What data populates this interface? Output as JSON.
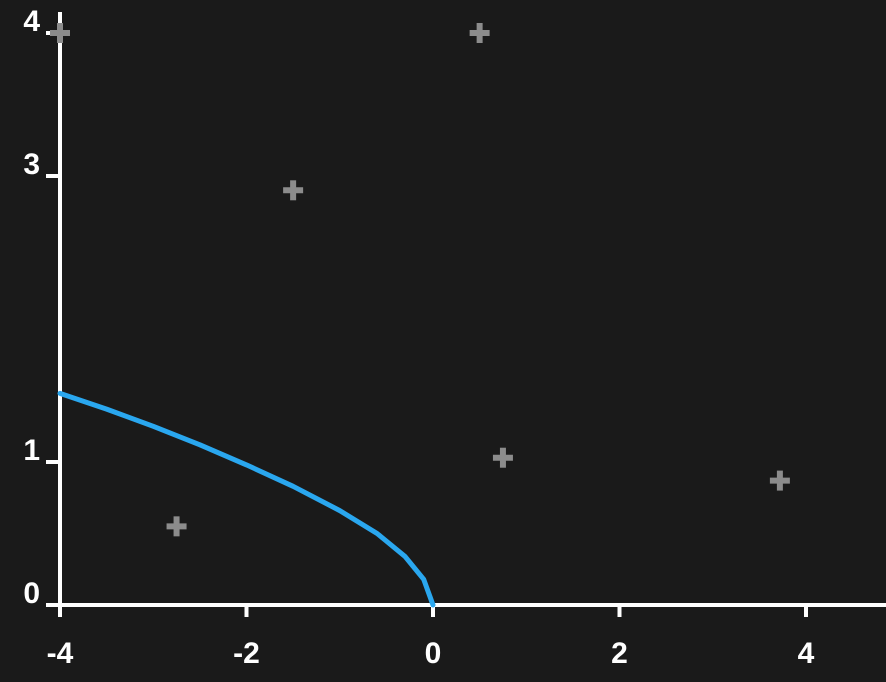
{
  "chart_data": {
    "type": "scatter",
    "title": "",
    "xlabel": "",
    "ylabel": "",
    "xlim": [
      -4,
      4.5
    ],
    "ylim": [
      0,
      4
    ],
    "x_ticks": [
      {
        "value": -4,
        "label": "-4"
      },
      {
        "value": -2,
        "label": "-2"
      },
      {
        "value": 0,
        "label": "0"
      },
      {
        "value": 2,
        "label": "2"
      },
      {
        "value": 4,
        "label": "4"
      }
    ],
    "y_ticks": [
      {
        "value": 0,
        "label": "0"
      },
      {
        "value": 1,
        "label": "1"
      },
      {
        "value": 3,
        "label": "3"
      },
      {
        "value": 4,
        "label": "4"
      }
    ],
    "grid": false,
    "series": [
      {
        "kind": "points",
        "marker": "plus",
        "color": "#8c8c8c",
        "points": [
          {
            "x": -4.0,
            "y": 4.0
          },
          {
            "x": 0.5,
            "y": 4.0
          },
          {
            "x": -1.5,
            "y": 2.9
          },
          {
            "x": 0.75,
            "y": 1.03
          },
          {
            "x": 3.72,
            "y": 0.87
          },
          {
            "x": -2.75,
            "y": 0.55
          }
        ]
      },
      {
        "kind": "line",
        "color": "#2aa7ef",
        "points": [
          {
            "x": -4.0,
            "y": 1.48
          },
          {
            "x": -3.5,
            "y": 1.37
          },
          {
            "x": -3.0,
            "y": 1.25
          },
          {
            "x": -2.5,
            "y": 1.12
          },
          {
            "x": -2.0,
            "y": 0.98
          },
          {
            "x": -1.5,
            "y": 0.83
          },
          {
            "x": -1.0,
            "y": 0.66
          },
          {
            "x": -0.6,
            "y": 0.5
          },
          {
            "x": -0.3,
            "y": 0.34
          },
          {
            "x": -0.1,
            "y": 0.18
          },
          {
            "x": 0.0,
            "y": 0.0
          }
        ]
      }
    ]
  }
}
